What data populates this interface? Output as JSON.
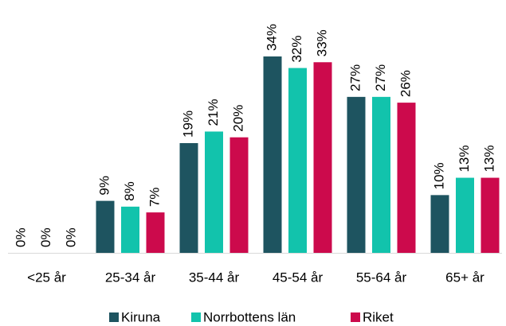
{
  "chart_data": {
    "type": "bar",
    "categories": [
      "<25 år",
      "25-34 år",
      "35-44 år",
      "45-54 år",
      "55-64 år",
      "65+ år"
    ],
    "series": [
      {
        "name": "Kiruna",
        "color": "#1e5460",
        "values": [
          0,
          9,
          19,
          34,
          27,
          10
        ],
        "value_labels": [
          "0%",
          "9%",
          "19%",
          "34%",
          "27%",
          "10%"
        ]
      },
      {
        "name": "Norrbottens län",
        "color": "#12c3ac",
        "values": [
          0,
          8,
          21,
          32,
          27,
          13
        ],
        "value_labels": [
          "0%",
          "8%",
          "21%",
          "32%",
          "27%",
          "13%"
        ]
      },
      {
        "name": "Riket",
        "color": "#cc0a4c",
        "values": [
          0,
          7,
          20,
          33,
          26,
          13
        ],
        "value_labels": [
          "0%",
          "7%",
          "20%",
          "33%",
          "26%",
          "13%"
        ]
      }
    ],
    "legend": "bottom"
  }
}
